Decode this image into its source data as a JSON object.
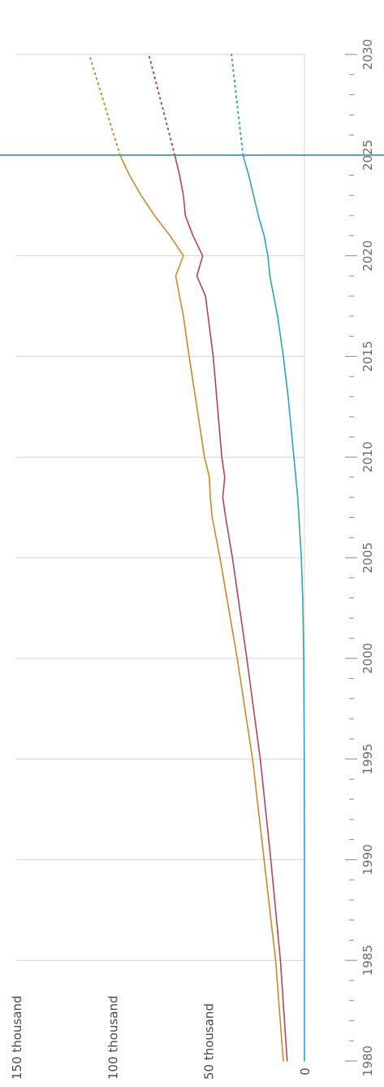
{
  "chart_data": {
    "type": "line",
    "orientation": "rotated-90-clockwise",
    "x_axis": {
      "tick_labels": [
        "1980",
        "1985",
        "1990",
        "1995",
        "2000",
        "2005",
        "2010",
        "2015",
        "2020",
        "2025",
        "2030"
      ],
      "range": [
        1980,
        2030
      ],
      "minor_ticks_per_year": true
    },
    "y_axis": {
      "tick_labels": [
        "0",
        "50 thousand",
        "100 thousand",
        "150 thousand"
      ],
      "tick_values": [
        0,
        50000,
        100000,
        150000
      ],
      "range": [
        0,
        150000
      ]
    },
    "grid": true,
    "current_year_marker": 2025,
    "series": [
      {
        "color": "#c98a2b",
        "values": [
          [
            1980,
            11000
          ],
          [
            1985,
            15000
          ],
          [
            1990,
            21000
          ],
          [
            1995,
            27000
          ],
          [
            2000,
            35000
          ],
          [
            2005,
            44000
          ],
          [
            2007,
            48000
          ],
          [
            2008,
            49000
          ],
          [
            2009,
            49500
          ],
          [
            2010,
            52000
          ],
          [
            2015,
            60000
          ],
          [
            2017,
            63000
          ],
          [
            2019,
            67000
          ],
          [
            2020,
            63000
          ],
          [
            2021,
            70000
          ],
          [
            2022,
            78000
          ],
          [
            2023,
            85000
          ],
          [
            2024,
            91000
          ],
          [
            2025,
            96000
          ]
        ],
        "projection": [
          [
            2025,
            96000
          ],
          [
            2030,
            112000
          ]
        ]
      },
      {
        "color": "#b5445a",
        "values": [
          [
            1980,
            9000
          ],
          [
            1985,
            12500
          ],
          [
            1990,
            17500
          ],
          [
            1995,
            23000
          ],
          [
            2000,
            30000
          ],
          [
            2005,
            37500
          ],
          [
            2007,
            41000
          ],
          [
            2008,
            42500
          ],
          [
            2009,
            41500
          ],
          [
            2010,
            43000
          ],
          [
            2015,
            47500
          ],
          [
            2018,
            51500
          ],
          [
            2019,
            56000
          ],
          [
            2020,
            53000
          ],
          [
            2021,
            58000
          ],
          [
            2022,
            62000
          ],
          [
            2023,
            63000
          ],
          [
            2024,
            65000
          ],
          [
            2025,
            67500
          ]
        ],
        "projection": [
          [
            2025,
            67500
          ],
          [
            2030,
            81000
          ]
        ]
      },
      {
        "color": "#2fa3b7",
        "values": [
          [
            1980,
            0
          ],
          [
            1985,
            0
          ],
          [
            1990,
            0
          ],
          [
            1995,
            100
          ],
          [
            2000,
            400
          ],
          [
            2003,
            900
          ],
          [
            2005,
            1600
          ],
          [
            2008,
            3500
          ],
          [
            2010,
            5500
          ],
          [
            2013,
            8500
          ],
          [
            2015,
            11000
          ],
          [
            2017,
            14000
          ],
          [
            2019,
            18000
          ],
          [
            2020,
            19000
          ],
          [
            2021,
            21000
          ],
          [
            2022,
            24000
          ],
          [
            2023,
            26500
          ],
          [
            2024,
            29000
          ],
          [
            2025,
            32000
          ]
        ],
        "projection": [
          [
            2025,
            32000
          ],
          [
            2030,
            38000
          ]
        ]
      }
    ]
  }
}
